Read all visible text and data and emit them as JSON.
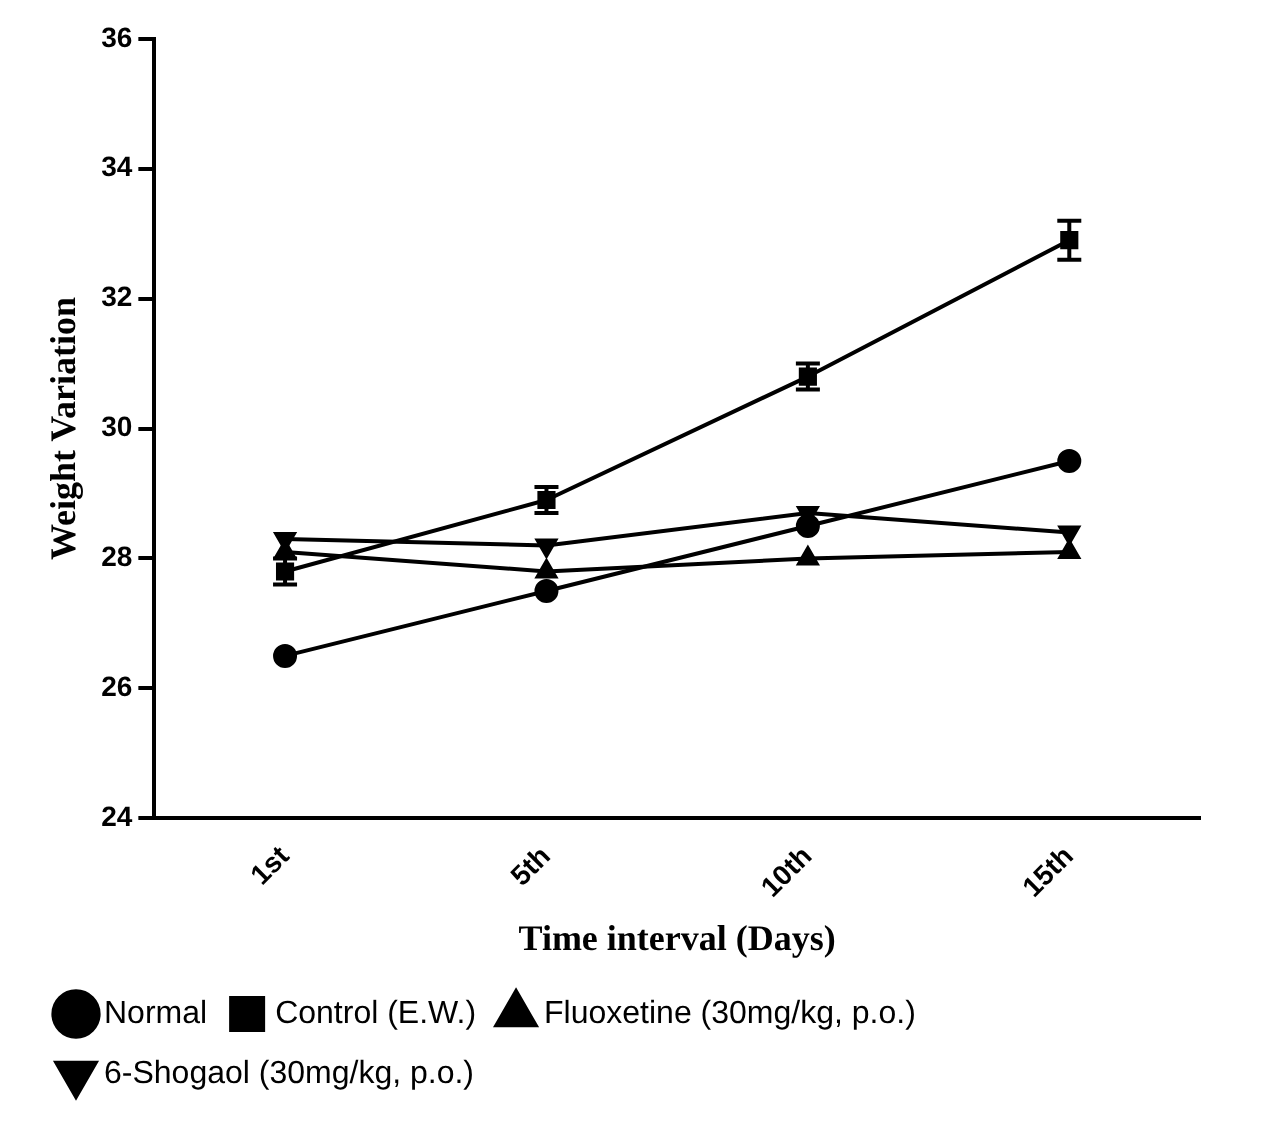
{
  "chart_data": {
    "type": "line",
    "xlabel": "Time interval (Days)",
    "ylabel": "Weight Variation",
    "categories": [
      "1st",
      "5th",
      "10th",
      "15th"
    ],
    "ylim": [
      24,
      36
    ],
    "yticks": [
      24,
      26,
      28,
      30,
      32,
      34,
      36
    ],
    "grid": false,
    "legend": "bottom",
    "line_style": "solid",
    "series": [
      {
        "name": "Normal",
        "color": "#000000",
        "marker": "circle",
        "values": [
          26.5,
          27.5,
          28.5,
          29.5
        ]
      },
      {
        "name": "Control (E.W.)",
        "color": "#000000",
        "marker": "square",
        "values": [
          27.8,
          28.9,
          30.8,
          32.9
        ],
        "errors": [
          0.2,
          0.2,
          0.2,
          0.3
        ]
      },
      {
        "name": "Fluoxetine (30mg/kg, p.o.)",
        "color": "#000000",
        "marker": "triangle",
        "values": [
          28.1,
          27.8,
          28.0,
          28.1
        ]
      },
      {
        "name": "6-Shogaol (30mg/kg, p.o.)",
        "color": "#000000",
        "marker": "triangle-down",
        "values": [
          28.3,
          28.2,
          28.7,
          28.4
        ]
      }
    ]
  }
}
